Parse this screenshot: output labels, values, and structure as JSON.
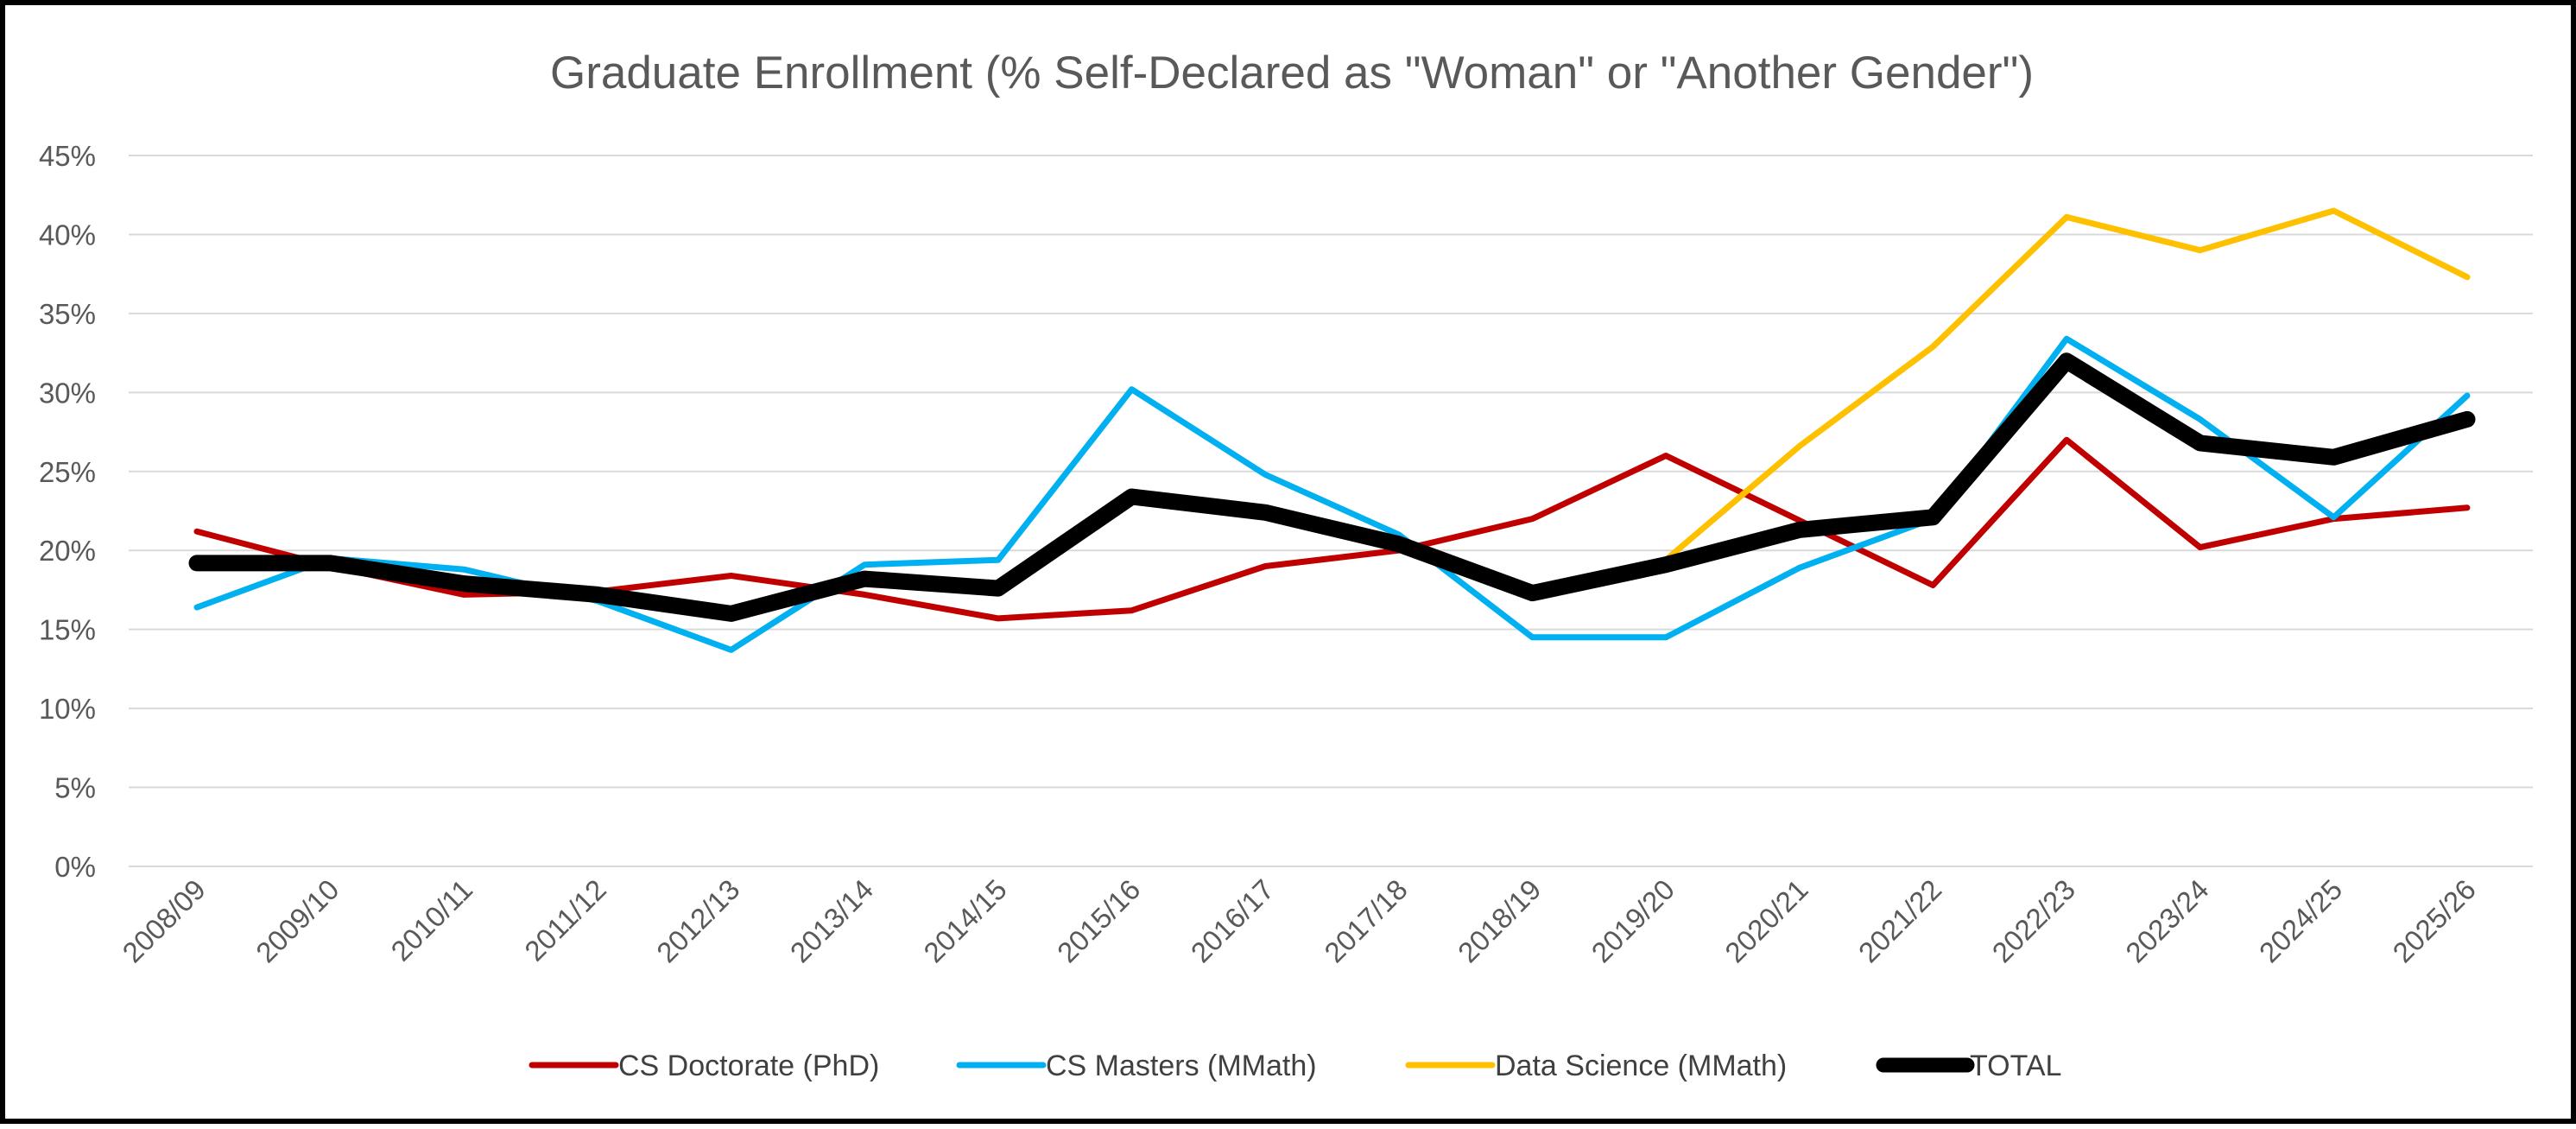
{
  "chart_data": {
    "type": "line",
    "title": "Graduate Enrollment (% Self-Declared as \"Woman\" or \"Another Gender\")",
    "xlabel": "",
    "ylabel": "",
    "ylim": [
      0,
      45
    ],
    "y_ticks": [
      "0%",
      "5%",
      "10%",
      "15%",
      "20%",
      "25%",
      "30%",
      "35%",
      "40%",
      "45%"
    ],
    "y_tick_values": [
      0,
      5,
      10,
      15,
      20,
      25,
      30,
      35,
      40,
      45
    ],
    "grid": true,
    "legend_position": "bottom",
    "categories": [
      "2008/09",
      "2009/10",
      "2010/11",
      "2011/12",
      "2012/13",
      "2013/14",
      "2014/15",
      "2015/16",
      "2016/17",
      "2017/18",
      "2018/19",
      "2019/20",
      "2020/21",
      "2021/22",
      "2022/23",
      "2023/24",
      "2024/25",
      "2025/26"
    ],
    "series": [
      {
        "name": "CS Doctorate (PhD)",
        "color": "#C00000",
        "values": [
          21.2,
          19.0,
          17.2,
          17.4,
          18.4,
          17.2,
          15.7,
          16.2,
          19.0,
          20.0,
          22.0,
          26.0,
          21.9,
          17.8,
          27.0,
          20.2,
          22.0,
          22.7
        ]
      },
      {
        "name": "CS Masters (MMath)",
        "color": "#00B0F0",
        "values": [
          16.4,
          19.5,
          18.8,
          16.8,
          13.7,
          19.1,
          19.4,
          30.2,
          24.8,
          21.0,
          14.5,
          14.5,
          18.9,
          22.0,
          33.4,
          28.3,
          22.1,
          29.8
        ]
      },
      {
        "name": "Data Science (MMath)",
        "color": "#FFC000",
        "values": [
          null,
          null,
          null,
          null,
          null,
          null,
          null,
          null,
          null,
          null,
          null,
          19.4,
          26.6,
          32.9,
          41.1,
          39.0,
          41.5,
          37.3
        ]
      },
      {
        "name": "TOTAL",
        "color": "#000000",
        "values": [
          19.2,
          19.2,
          17.9,
          17.2,
          16.0,
          18.2,
          17.6,
          23.4,
          22.4,
          20.4,
          17.3,
          19.1,
          21.3,
          22.1,
          32.0,
          26.8,
          25.9,
          28.3
        ]
      }
    ]
  }
}
